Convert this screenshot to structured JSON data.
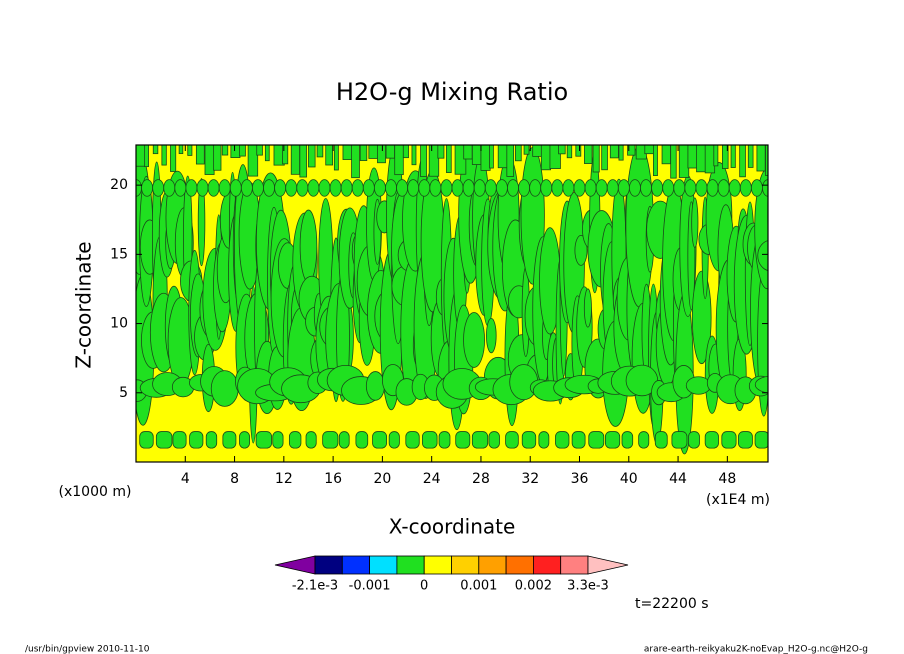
{
  "chart_data": {
    "type": "contour",
    "title": "H2O-g Mixing Ratio",
    "x_label": "X-coordinate",
    "y_label": "Z-coordinate",
    "x_unit": "(x1E4 m)",
    "y_unit": "(x1000 m)",
    "xlim": [
      0,
      51.3
    ],
    "ylim": [
      0,
      22.9
    ],
    "xticks": [
      4,
      8,
      12,
      16,
      20,
      24,
      28,
      32,
      36,
      40,
      44,
      48
    ],
    "yticks": [
      5,
      10,
      15,
      20
    ],
    "colorbar": {
      "colors": [
        "#8000a0",
        "#000080",
        "#0030ff",
        "#00e0ff",
        "#20e020",
        "#ffff00",
        "#ffd000",
        "#ffa000",
        "#ff7000",
        "#ff2020",
        "#ff8080",
        "#ffc0c0"
      ],
      "labels": [
        "-2.1e-3",
        "-0.001",
        "0",
        "0.001",
        "0.002",
        "3.3e-3"
      ]
    },
    "time_label": "t=22200 s",
    "footer_left": "/usr/bin/gpview  2010-11-10",
    "footer_right": "arare-earth-reikyaku2K-noEvap_H2O-g.nc@H2O-g"
  }
}
